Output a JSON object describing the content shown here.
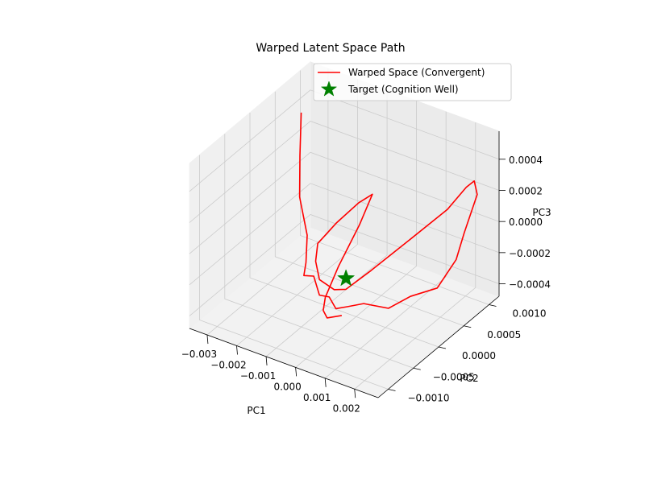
{
  "chart_data": {
    "type": "line3d",
    "title": "Warped Latent Space Path",
    "xlabel": "PC1",
    "ylabel": "PC2",
    "zlabel": "PC3",
    "xlim": [
      -0.0036,
      0.0028
    ],
    "ylim": [
      -0.0012,
      0.0012
    ],
    "zlim": [
      -0.00048,
      0.00058
    ],
    "x_ticks": [
      -0.003,
      -0.002,
      -0.001,
      0.0,
      0.001,
      0.002
    ],
    "x_tick_labels": [
      "−0.003",
      "−0.002",
      "−0.001",
      "0.000",
      "0.001",
      "0.002"
    ],
    "y_ticks": [
      -0.001,
      -0.0005,
      0.0,
      0.0005,
      0.001
    ],
    "y_tick_labels": [
      "−0.0010",
      "−0.0005",
      "0.0000",
      "0.0005",
      "0.0010"
    ],
    "z_ticks": [
      -0.0004,
      -0.0002,
      0.0,
      0.0002,
      0.0004
    ],
    "z_tick_labels": [
      "−0.0004",
      "−0.0002",
      "0.0000",
      "0.0002",
      "0.0004"
    ],
    "grid": true,
    "legend_position": "top-right",
    "series": [
      {
        "name": "Warped Space (Convergent)",
        "kind": "line",
        "color": "#ff0000",
        "points": [
          [
            -0.0034,
            0.0009,
            0.00035
          ],
          [
            -0.0031,
            0.0007,
            0.00015
          ],
          [
            -0.0026,
            0.0004,
            0.0
          ],
          [
            -0.002,
            0.0002,
            -0.00015
          ],
          [
            -0.0017,
            0.0,
            -0.00025
          ],
          [
            -0.0016,
            -0.0001,
            -0.0003
          ],
          [
            -0.00135,
            -5e-05,
            -0.0003
          ],
          [
            -0.0009,
            -0.0002,
            -0.00035
          ],
          [
            -0.0004,
            -0.0003,
            -0.0003
          ],
          [
            0.0,
            -0.0004,
            -0.00032
          ],
          [
            0.0003,
            -0.00035,
            -0.0003
          ],
          [
            0.0006,
            -0.0002,
            -0.0003
          ],
          [
            0.0011,
            0.0,
            -0.00035
          ],
          [
            0.0015,
            0.0002,
            -0.0003
          ],
          [
            0.0019,
            0.0005,
            -0.0003
          ],
          [
            0.0022,
            0.0007,
            -0.00015
          ],
          [
            0.0023,
            0.0008,
            0.0
          ],
          [
            0.0024,
            0.001,
            0.0002
          ],
          [
            0.0023,
            0.001,
            0.00028
          ],
          [
            0.0022,
            0.0009,
            0.00026
          ],
          [
            0.0019,
            0.0007,
            0.00015
          ],
          [
            0.0012,
            0.0003,
            0.0
          ],
          [
            0.0005,
            0.0,
            -0.00015
          ],
          [
            0.0,
            -0.0002,
            -0.00025
          ],
          [
            -0.0004,
            -0.0002,
            -0.00028
          ],
          [
            -0.0009,
            -0.0002,
            -0.00025
          ],
          [
            -0.0012,
            -0.0001,
            -0.00018
          ],
          [
            -0.0013,
            0.0,
            -0.0001
          ],
          [
            -0.001,
            0.0002,
            0.0
          ],
          [
            -0.0006,
            0.0004,
            0.0001
          ],
          [
            -0.0003,
            0.0005,
            0.00015
          ],
          [
            -0.0004,
            0.0003,
            0.0
          ],
          [
            -0.0006,
            0.0,
            -0.0002
          ],
          [
            -0.0007,
            -0.0002,
            -0.00035
          ],
          [
            -0.0006,
            -0.0003,
            -0.0004
          ],
          [
            -0.0003,
            -0.0004,
            -0.0004
          ],
          [
            0.0002,
            -0.0004,
            -0.00035
          ]
        ]
      },
      {
        "name": "Target (Cognition Well)",
        "kind": "marker",
        "marker": "star",
        "color": "#008000",
        "points": [
          [
            0.0,
            -0.0002,
            -0.00018
          ]
        ]
      }
    ]
  }
}
